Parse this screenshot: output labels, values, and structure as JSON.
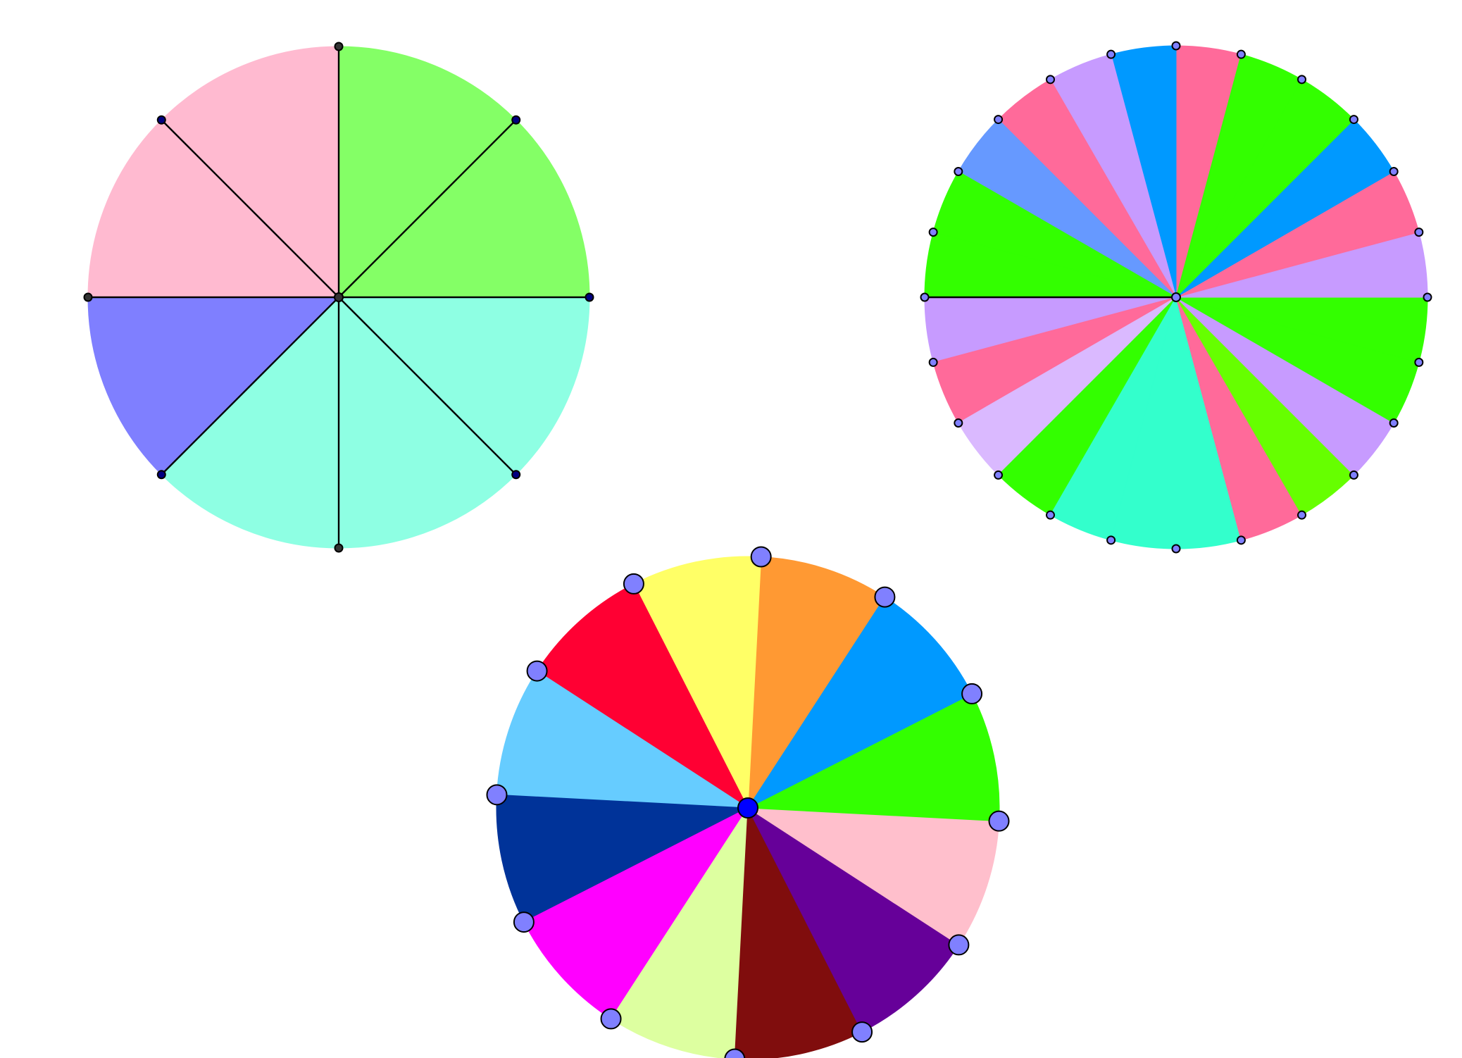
{
  "diagrams": [
    {
      "id": "wheel-8",
      "divisions": 8,
      "sector_colors": [
        "#84ff66",
        "#84ff66",
        "#ffbad0",
        "#ffbad0",
        "#7f7fff",
        "#8effe3",
        "#8effe3",
        "#8effe3"
      ],
      "spoke_color": "#000000",
      "point_colors": [
        "#000080",
        "#000080",
        "#333333",
        "#000080",
        "#333333",
        "#000080",
        "#333333",
        "#000080"
      ],
      "center_point_color": "#333333"
    },
    {
      "id": "wheel-24",
      "divisions": 24,
      "sector_colors": [
        "#ff6a9a",
        "#0099ff",
        "#c79bff",
        "#ff6a9a",
        "#6699ff",
        "#33ff00",
        "#33ff00",
        "#c79bff",
        "#ff6a9a",
        "#dab9ff",
        "#33ff00",
        "#33ffcc",
        "#33ffcc",
        "#33ffcc",
        "#ff6a9a",
        "#66ff00",
        "#c79bff",
        "#33ff00",
        "#33ff00",
        "#c79bff",
        "#ff6a9a",
        "#0099ff",
        "#33ff00",
        "#33ff00"
      ],
      "spoke_color": "#000000",
      "point_color": "#8080ff",
      "center_point_color": "#8080ff"
    },
    {
      "id": "wheel-12",
      "divisions": 12,
      "sector_colors": [
        "#ff9933",
        "#ffff66",
        "#ff0033",
        "#66ccff",
        "#003399",
        "#ff00ff",
        "#ddffa0",
        "#800d0d",
        "#660099",
        "#ffbfcc",
        "#33ff00",
        "#0099ff"
      ],
      "point_color": "#8080ff",
      "center_point_color": "#0000ff"
    }
  ]
}
